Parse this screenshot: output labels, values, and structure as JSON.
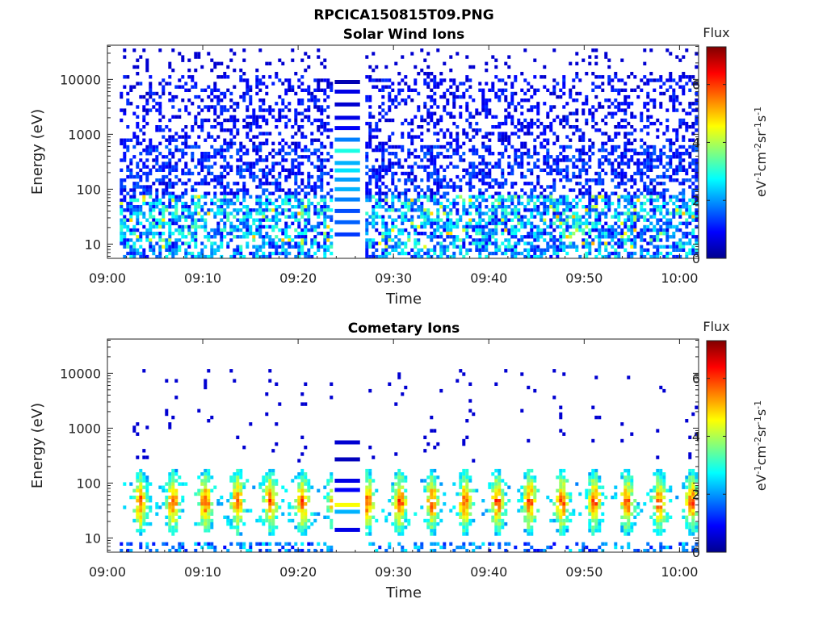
{
  "figure_title": "RPCICA150815T09.PNG",
  "chart_data": [
    {
      "type": "heatmap",
      "title": "Solar Wind Ions",
      "xlabel": "Time",
      "ylabel": "Energy (eV)",
      "yscale": "log",
      "ylim": [
        5.5,
        42000
      ],
      "xlim": [
        "09:00",
        "10:02"
      ],
      "x_ticks": [
        "09:00",
        "09:10",
        "09:20",
        "09:30",
        "09:40",
        "09:50",
        "10:00"
      ],
      "y_ticks": [
        "10",
        "100",
        "1000",
        "10000"
      ],
      "data_gap": [
        "09:23.5",
        "09:27"
      ],
      "colorbar": {
        "title": "Flux",
        "label": "eV-1cm-2sr-1s-1",
        "label_base": "eV",
        "label_exps": [
          "-1",
          "-2",
          "-1",
          "-1"
        ],
        "label_parts": [
          "cm",
          "sr",
          "s"
        ],
        "range": [
          0,
          7.3
        ],
        "ticks": [
          "0",
          "2",
          "4",
          "6"
        ]
      },
      "population": "solar_wind"
    },
    {
      "type": "heatmap",
      "title": "Cometary Ions",
      "xlabel": "Time",
      "ylabel": "Energy (eV)",
      "yscale": "log",
      "ylim": [
        5.5,
        42000
      ],
      "xlim": [
        "09:00",
        "10:02"
      ],
      "x_ticks": [
        "09:00",
        "09:10",
        "09:20",
        "09:30",
        "09:40",
        "09:50",
        "10:00"
      ],
      "y_ticks": [
        "10",
        "100",
        "1000",
        "10000"
      ],
      "data_gap": [
        "09:23.5",
        "09:27"
      ],
      "colorbar": {
        "title": "Flux",
        "label": "eV-1cm-2sr-1s-1",
        "label_base": "eV",
        "label_exps": [
          "-1",
          "-2",
          "-1",
          "-1"
        ],
        "label_parts": [
          "cm",
          "sr",
          "s"
        ],
        "range": [
          0,
          7.3
        ],
        "ticks": [
          "0",
          "2",
          "4",
          "6"
        ]
      },
      "population": "cometary"
    }
  ]
}
